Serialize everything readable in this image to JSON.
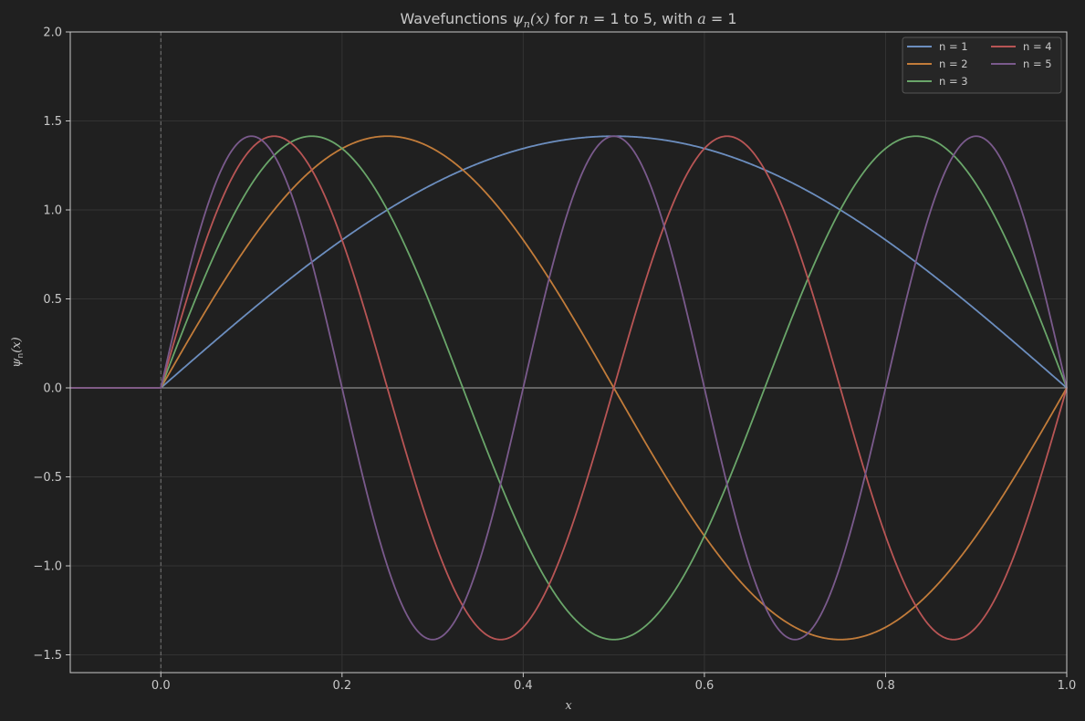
{
  "chart_data": {
    "type": "line",
    "title": {
      "prefix": "Wavefunctions ",
      "psi": "ψ",
      "psi_sub": "n",
      "psi_arg": "(x)",
      "middle": " for ",
      "n_var": "n",
      "range_text": " = 1 to 5, with ",
      "a_var": "a",
      "a_text": " = 1"
    },
    "xlabel": "x",
    "ylabel": {
      "psi": "ψ",
      "sub": "n",
      "arg": "(x)"
    },
    "xlim": [
      -0.1,
      1.0
    ],
    "ylim": [
      -1.6,
      2.0
    ],
    "xticks": [
      0.0,
      0.2,
      0.4,
      0.6,
      0.8,
      1.0
    ],
    "xtick_labels": [
      "0.0",
      "0.2",
      "0.4",
      "0.6",
      "0.8",
      "1.0"
    ],
    "yticks": [
      -1.5,
      -1.0,
      -0.5,
      0.0,
      0.5,
      1.0,
      1.5,
      2.0
    ],
    "ytick_labels": [
      "−1.5",
      "−1.0",
      "−0.5",
      "0.0",
      "0.5",
      "1.0",
      "1.5",
      "2.0"
    ],
    "grid": true,
    "legend_placement": "top-right",
    "legend_columns": 2,
    "well_width": 1,
    "domain": [
      -0.1,
      1.0
    ],
    "function": "sqrt(2/a)*sin(n*pi*x/a) for 0<=x<=a, else 0",
    "amplitude": 1.4142,
    "series": [
      {
        "name": "n = 1",
        "n": 1,
        "color": "#6c8ebf"
      },
      {
        "name": "n = 2",
        "n": 2,
        "color": "#c27c3a"
      },
      {
        "name": "n = 3",
        "n": 3,
        "color": "#6aa66a"
      },
      {
        "name": "n = 4",
        "n": 4,
        "color": "#b85555"
      },
      {
        "name": "n = 5",
        "n": 5,
        "color": "#7a5a8c"
      }
    ],
    "colors": {
      "background": "#202020",
      "axes_frame": "#c8c8c8",
      "grid": "#333333",
      "zero_line": "#a8a8a8",
      "wall_line": "#777777",
      "text": "#c8c8c8",
      "legend_bg": "#262626",
      "legend_border": "#555555"
    }
  }
}
